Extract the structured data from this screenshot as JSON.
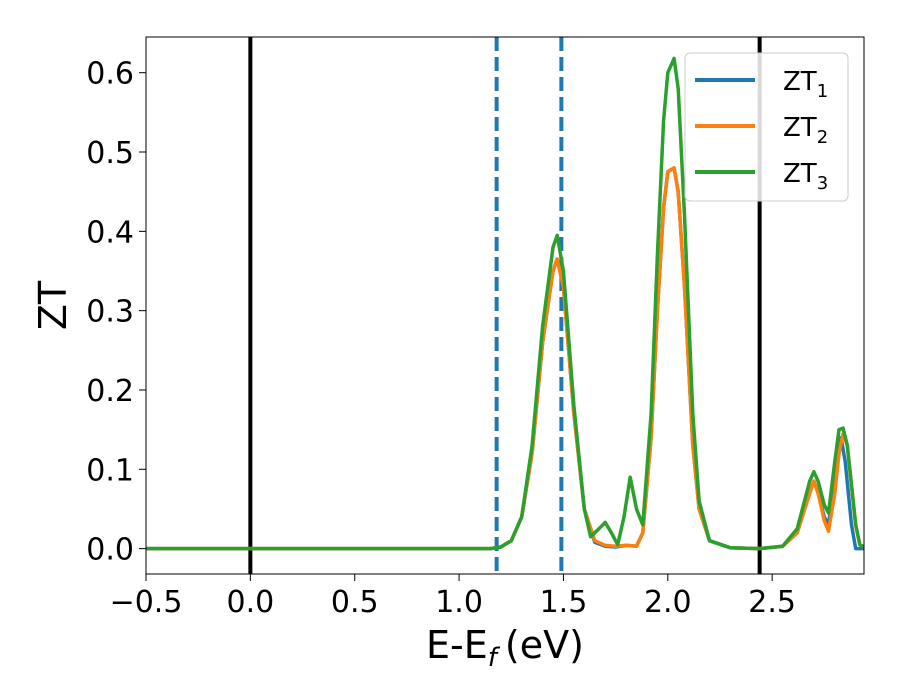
{
  "chart_data": {
    "type": "line",
    "xlabel": "E-E",
    "xlabel_sub": "f",
    "xlabel_unit": "(eV)",
    "ylabel": "ZT",
    "xlim": [
      -0.5,
      2.94
    ],
    "ylim": [
      -0.032,
      0.645
    ],
    "xticks": [
      -0.5,
      0.0,
      0.5,
      1.0,
      1.5,
      2.0,
      2.5
    ],
    "xtick_labels": [
      "−0.5",
      "0.0",
      "0.5",
      "1.0",
      "1.5",
      "2.0",
      "2.5"
    ],
    "yticks": [
      0.0,
      0.1,
      0.2,
      0.3,
      0.4,
      0.5,
      0.6
    ],
    "ytick_labels": [
      "0.0",
      "0.1",
      "0.2",
      "0.3",
      "0.4",
      "0.5",
      "0.6"
    ],
    "grid": false,
    "legend_position": "top-right",
    "vlines": [
      {
        "x": 0.0,
        "color": "#000000",
        "style": "solid"
      },
      {
        "x": 2.44,
        "color": "#000000",
        "style": "solid"
      },
      {
        "x": 1.18,
        "color": "#1f77b4",
        "style": "dashed"
      },
      {
        "x": 1.49,
        "color": "#1f77b4",
        "style": "dashed"
      }
    ],
    "series": [
      {
        "name": "ZT",
        "name_sub": "1",
        "color": "#1f77b4",
        "x": [
          -0.5,
          1.0,
          1.15,
          1.2,
          1.25,
          1.3,
          1.35,
          1.4,
          1.45,
          1.47,
          1.5,
          1.55,
          1.6,
          1.65,
          1.7,
          1.75,
          1.8,
          1.85,
          1.88,
          1.92,
          1.95,
          1.98,
          2.0,
          2.03,
          2.05,
          2.08,
          2.12,
          2.15,
          2.2,
          2.3,
          2.44,
          2.55,
          2.62,
          2.68,
          2.7,
          2.72,
          2.75,
          2.77,
          2.8,
          2.82,
          2.83,
          2.85,
          2.88,
          2.9,
          2.94
        ],
        "y": [
          0.0,
          0.0,
          0.0,
          0.002,
          0.01,
          0.04,
          0.12,
          0.26,
          0.35,
          0.365,
          0.33,
          0.17,
          0.05,
          0.008,
          0.003,
          0.002,
          0.004,
          0.003,
          0.02,
          0.14,
          0.3,
          0.43,
          0.475,
          0.48,
          0.45,
          0.33,
          0.13,
          0.05,
          0.01,
          0.001,
          0.0,
          0.003,
          0.02,
          0.07,
          0.085,
          0.07,
          0.04,
          0.03,
          0.09,
          0.135,
          0.14,
          0.11,
          0.03,
          0.0,
          0.0
        ]
      },
      {
        "name": "ZT",
        "name_sub": "2",
        "color": "#ff7f0e",
        "x": [
          -0.5,
          1.0,
          1.15,
          1.2,
          1.25,
          1.3,
          1.35,
          1.4,
          1.45,
          1.47,
          1.5,
          1.55,
          1.6,
          1.65,
          1.7,
          1.75,
          1.8,
          1.85,
          1.88,
          1.92,
          1.95,
          1.98,
          2.0,
          2.03,
          2.05,
          2.08,
          2.12,
          2.15,
          2.2,
          2.3,
          2.44,
          2.55,
          2.62,
          2.68,
          2.7,
          2.72,
          2.75,
          2.77,
          2.8,
          2.82,
          2.84,
          2.86,
          2.88,
          2.9,
          2.92,
          2.94
        ],
        "y": [
          0.0,
          0.0,
          0.0,
          0.002,
          0.01,
          0.04,
          0.12,
          0.26,
          0.35,
          0.365,
          0.33,
          0.17,
          0.05,
          0.01,
          0.004,
          0.003,
          0.004,
          0.003,
          0.02,
          0.14,
          0.3,
          0.43,
          0.475,
          0.48,
          0.45,
          0.33,
          0.13,
          0.05,
          0.01,
          0.001,
          0.0,
          0.003,
          0.02,
          0.07,
          0.085,
          0.07,
          0.035,
          0.022,
          0.07,
          0.12,
          0.145,
          0.13,
          0.08,
          0.03,
          0.005,
          0.002
        ]
      },
      {
        "name": "ZT",
        "name_sub": "3",
        "color": "#2ca02c",
        "x": [
          -0.5,
          1.0,
          1.15,
          1.2,
          1.25,
          1.3,
          1.35,
          1.4,
          1.45,
          1.47,
          1.5,
          1.55,
          1.6,
          1.63,
          1.67,
          1.7,
          1.73,
          1.76,
          1.79,
          1.82,
          1.85,
          1.88,
          1.92,
          1.95,
          1.98,
          2.0,
          2.03,
          2.05,
          2.08,
          2.12,
          2.15,
          2.2,
          2.3,
          2.44,
          2.55,
          2.62,
          2.68,
          2.7,
          2.72,
          2.75,
          2.77,
          2.8,
          2.82,
          2.84,
          2.86,
          2.88,
          2.9,
          2.92,
          2.94
        ],
        "y": [
          0.0,
          0.0,
          0.0,
          0.002,
          0.01,
          0.04,
          0.13,
          0.28,
          0.38,
          0.395,
          0.35,
          0.18,
          0.05,
          0.015,
          0.025,
          0.033,
          0.02,
          0.005,
          0.04,
          0.09,
          0.05,
          0.03,
          0.17,
          0.37,
          0.54,
          0.6,
          0.618,
          0.58,
          0.42,
          0.17,
          0.06,
          0.01,
          0.001,
          0.0,
          0.003,
          0.025,
          0.085,
          0.097,
          0.085,
          0.055,
          0.045,
          0.11,
          0.15,
          0.152,
          0.13,
          0.08,
          0.03,
          0.005,
          0.002
        ]
      }
    ]
  }
}
